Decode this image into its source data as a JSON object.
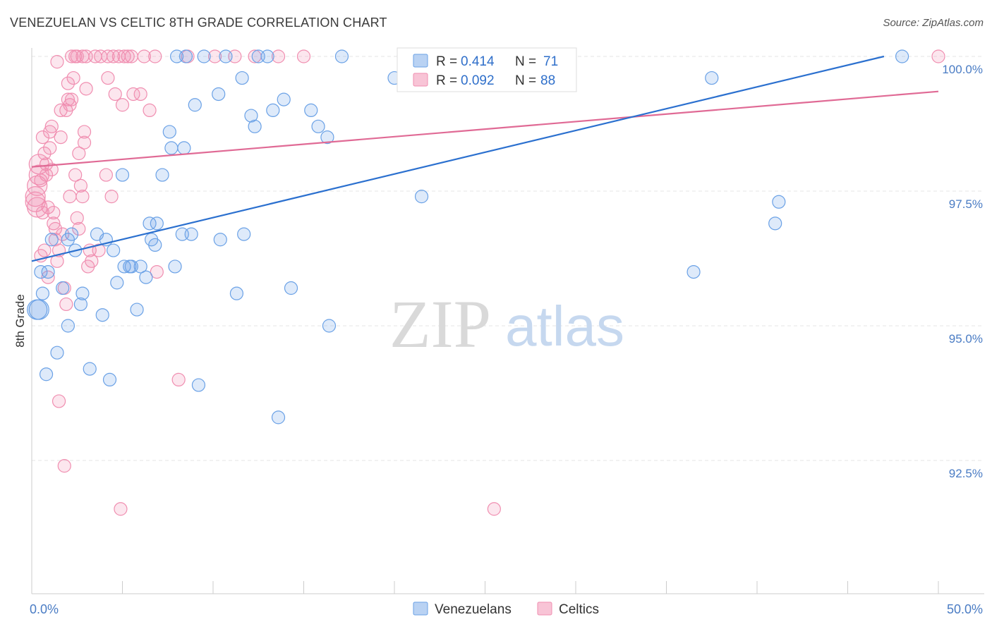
{
  "header": {
    "title": "VENEZUELAN VS CELTIC 8TH GRADE CORRELATION CHART",
    "source": "Source: ZipAtlas.com"
  },
  "watermark": {
    "zip": "ZIP",
    "atlas": "atlas"
  },
  "legend": {
    "r_label": "R =",
    "n_label": "N =",
    "venezuelans": {
      "r": "0.414",
      "n": "71",
      "color": "#6aa1e6"
    },
    "celtics": {
      "r": "0.092",
      "n": "88",
      "color": "#f08eb0"
    }
  },
  "chart_data": {
    "type": "scatter",
    "title": "VENEZUELAN VS CELTIC 8TH GRADE CORRELATION CHART",
    "xlabel": "",
    "ylabel": "8th Grade",
    "xlim": [
      0,
      50
    ],
    "ylim": [
      90.5,
      100.5
    ],
    "x_tick_labels": [
      "0.0%",
      "50.0%"
    ],
    "y_ticks": [
      92.5,
      95.0,
      97.5,
      100.0
    ],
    "y_tick_labels": [
      "92.5%",
      "95.0%",
      "97.5%",
      "100.0%"
    ],
    "grid": true,
    "legend_placement": "top-center",
    "series": [
      {
        "name": "Venezuelans",
        "color": "#6aa1e6",
        "line_color": "#2b70cf",
        "trend": {
          "x": [
            0,
            47
          ],
          "y": [
            96.2,
            100.0
          ]
        },
        "points": [
          [
            0.4,
            95.3
          ],
          [
            0.5,
            96.0
          ],
          [
            0.6,
            95.6
          ],
          [
            0.8,
            94.1
          ],
          [
            0.9,
            96.0
          ],
          [
            1.1,
            96.6
          ],
          [
            1.4,
            94.5
          ],
          [
            1.7,
            95.7
          ],
          [
            2.0,
            95.0
          ],
          [
            2.2,
            96.7
          ],
          [
            2.4,
            96.4
          ],
          [
            2.7,
            95.4
          ],
          [
            2.8,
            95.6
          ],
          [
            3.2,
            94.2
          ],
          [
            3.6,
            96.7
          ],
          [
            3.9,
            95.2
          ],
          [
            4.1,
            96.6
          ],
          [
            4.3,
            94.0
          ],
          [
            4.5,
            96.4
          ],
          [
            4.7,
            95.8
          ],
          [
            5.0,
            97.8
          ],
          [
            5.1,
            96.1
          ],
          [
            5.4,
            96.1
          ],
          [
            5.8,
            95.3
          ],
          [
            6.0,
            96.1
          ],
          [
            6.3,
            95.9
          ],
          [
            6.5,
            96.9
          ],
          [
            6.6,
            96.6
          ],
          [
            6.8,
            96.5
          ],
          [
            6.9,
            96.9
          ],
          [
            7.2,
            97.8
          ],
          [
            7.6,
            98.6
          ],
          [
            7.7,
            98.3
          ],
          [
            7.9,
            96.1
          ],
          [
            8.3,
            96.7
          ],
          [
            8.4,
            98.3
          ],
          [
            8.5,
            100.0
          ],
          [
            8.8,
            96.7
          ],
          [
            9.0,
            99.1
          ],
          [
            9.2,
            93.9
          ],
          [
            9.5,
            100.0
          ],
          [
            10.3,
            99.3
          ],
          [
            10.4,
            96.6
          ],
          [
            10.7,
            100.0
          ],
          [
            11.3,
            95.6
          ],
          [
            11.6,
            99.6
          ],
          [
            11.7,
            96.7
          ],
          [
            12.1,
            98.9
          ],
          [
            12.3,
            98.7
          ],
          [
            13.0,
            100.0
          ],
          [
            13.3,
            99.0
          ],
          [
            13.6,
            93.3
          ],
          [
            13.9,
            99.2
          ],
          [
            14.3,
            95.7
          ],
          [
            15.4,
            99.0
          ],
          [
            15.8,
            98.7
          ],
          [
            16.3,
            98.5
          ],
          [
            16.4,
            95.0
          ],
          [
            17.1,
            100.0
          ],
          [
            20.0,
            99.6
          ],
          [
            21.5,
            97.4
          ],
          [
            36.5,
            96.0
          ],
          [
            37.5,
            99.6
          ],
          [
            41.0,
            96.9
          ],
          [
            41.2,
            97.3
          ],
          [
            48.0,
            100.0
          ],
          [
            0.3,
            95.3
          ],
          [
            2.0,
            96.6
          ],
          [
            5.5,
            96.1
          ],
          [
            8.0,
            100.0
          ],
          [
            12.5,
            100.0
          ]
        ]
      },
      {
        "name": "Celtics",
        "color": "#f08eb0",
        "line_color": "#e06a95",
        "trend": {
          "x": [
            0,
            50
          ],
          "y": [
            97.95,
            99.35
          ]
        },
        "points": [
          [
            0.2,
            97.4
          ],
          [
            0.2,
            97.3
          ],
          [
            0.3,
            97.6
          ],
          [
            0.3,
            97.2
          ],
          [
            0.4,
            98.0
          ],
          [
            0.4,
            97.8
          ],
          [
            0.5,
            96.3
          ],
          [
            0.5,
            97.7
          ],
          [
            0.6,
            98.5
          ],
          [
            0.6,
            97.1
          ],
          [
            0.7,
            98.2
          ],
          [
            0.7,
            96.4
          ],
          [
            0.8,
            97.8
          ],
          [
            0.8,
            98.0
          ],
          [
            0.9,
            97.2
          ],
          [
            0.9,
            95.9
          ],
          [
            1.0,
            98.6
          ],
          [
            1.0,
            98.3
          ],
          [
            1.1,
            97.9
          ],
          [
            1.1,
            98.7
          ],
          [
            1.2,
            96.9
          ],
          [
            1.2,
            97.1
          ],
          [
            1.3,
            96.8
          ],
          [
            1.3,
            96.6
          ],
          [
            1.4,
            99.9
          ],
          [
            1.4,
            96.2
          ],
          [
            1.5,
            96.4
          ],
          [
            1.5,
            93.6
          ],
          [
            1.6,
            99.0
          ],
          [
            1.6,
            98.5
          ],
          [
            1.7,
            96.7
          ],
          [
            1.8,
            95.7
          ],
          [
            1.8,
            92.4
          ],
          [
            1.9,
            99.0
          ],
          [
            1.9,
            95.4
          ],
          [
            2.0,
            99.5
          ],
          [
            2.0,
            99.2
          ],
          [
            2.1,
            97.4
          ],
          [
            2.1,
            99.1
          ],
          [
            2.2,
            99.2
          ],
          [
            2.2,
            100.0
          ],
          [
            2.3,
            99.6
          ],
          [
            2.4,
            97.8
          ],
          [
            2.4,
            100.0
          ],
          [
            2.5,
            97.0
          ],
          [
            2.5,
            100.0
          ],
          [
            2.6,
            98.2
          ],
          [
            2.6,
            96.8
          ],
          [
            2.7,
            97.6
          ],
          [
            2.8,
            97.4
          ],
          [
            2.8,
            100.0
          ],
          [
            2.9,
            98.6
          ],
          [
            2.9,
            98.4
          ],
          [
            3.0,
            99.4
          ],
          [
            3.0,
            100.0
          ],
          [
            3.1,
            96.1
          ],
          [
            3.2,
            96.4
          ],
          [
            3.3,
            96.2
          ],
          [
            3.5,
            100.0
          ],
          [
            3.7,
            96.4
          ],
          [
            3.8,
            100.0
          ],
          [
            4.1,
            97.8
          ],
          [
            4.2,
            100.0
          ],
          [
            4.2,
            99.6
          ],
          [
            4.4,
            97.4
          ],
          [
            4.5,
            100.0
          ],
          [
            4.6,
            99.3
          ],
          [
            4.8,
            100.0
          ],
          [
            4.9,
            91.6
          ],
          [
            5.0,
            99.1
          ],
          [
            5.1,
            100.0
          ],
          [
            5.3,
            100.0
          ],
          [
            5.5,
            100.0
          ],
          [
            5.6,
            99.3
          ],
          [
            6.0,
            99.3
          ],
          [
            6.2,
            100.0
          ],
          [
            6.5,
            99.0
          ],
          [
            6.8,
            100.0
          ],
          [
            6.9,
            96.0
          ],
          [
            8.1,
            94.0
          ],
          [
            8.6,
            100.0
          ],
          [
            10.1,
            100.0
          ],
          [
            11.2,
            100.0
          ],
          [
            12.3,
            100.0
          ],
          [
            13.6,
            100.0
          ],
          [
            15.0,
            100.0
          ],
          [
            25.5,
            91.6
          ],
          [
            50.0,
            100.0
          ]
        ]
      }
    ]
  }
}
